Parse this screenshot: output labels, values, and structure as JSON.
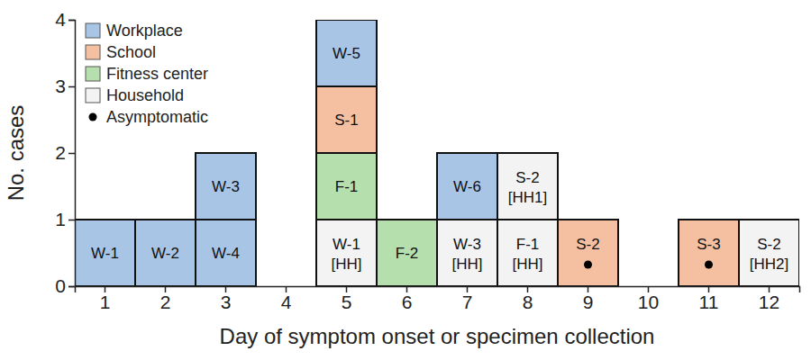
{
  "chart_data": {
    "type": "bar",
    "stacked": true,
    "x_label": "Day of symptom onset or specimen collection",
    "y_label": "No. cases",
    "categories": [
      1,
      2,
      3,
      4,
      5,
      6,
      7,
      8,
      9,
      10,
      11,
      12
    ],
    "ylim": [
      0,
      4
    ],
    "yticks": [
      0,
      1,
      2,
      3,
      4
    ],
    "grid": false,
    "legend": "upper left",
    "groups": [
      {
        "name": "Workplace",
        "color": "#a8c5e6"
      },
      {
        "name": "School",
        "color": "#f5c0a2"
      },
      {
        "name": "Fitness center",
        "color": "#b6dfae"
      },
      {
        "name": "Household",
        "color": "#f3f3f3"
      }
    ],
    "asymptomatic_marker": {
      "name": "Asymptomatic",
      "marker": "circle"
    },
    "cases": [
      {
        "day": 1,
        "label": "W-1",
        "setting": "Workplace",
        "asymptomatic": false,
        "value": 1
      },
      {
        "day": 2,
        "label": "W-2",
        "setting": "Workplace",
        "asymptomatic": false,
        "value": 1
      },
      {
        "day": 3,
        "label": "W-4",
        "setting": "Workplace",
        "asymptomatic": false,
        "value": 1
      },
      {
        "day": 3,
        "label": "W-3",
        "setting": "Workplace",
        "asymptomatic": false,
        "value": 1
      },
      {
        "day": 5,
        "label": "W-1 [HH]",
        "setting": "Household",
        "asymptomatic": false,
        "value": 1
      },
      {
        "day": 5,
        "label": "F-1",
        "setting": "Fitness center",
        "asymptomatic": false,
        "value": 1
      },
      {
        "day": 5,
        "label": "S-1",
        "setting": "School",
        "asymptomatic": false,
        "value": 1
      },
      {
        "day": 5,
        "label": "W-5",
        "setting": "Workplace",
        "asymptomatic": false,
        "value": 1
      },
      {
        "day": 6,
        "label": "F-2",
        "setting": "Fitness center",
        "asymptomatic": false,
        "value": 1
      },
      {
        "day": 7,
        "label": "W-3 [HH]",
        "setting": "Household",
        "asymptomatic": false,
        "value": 1
      },
      {
        "day": 7,
        "label": "W-6",
        "setting": "Workplace",
        "asymptomatic": false,
        "value": 1
      },
      {
        "day": 8,
        "label": "F-1 [HH]",
        "setting": "Household",
        "asymptomatic": false,
        "value": 1
      },
      {
        "day": 8,
        "label": "S-2 [HH1]",
        "setting": "Household",
        "asymptomatic": false,
        "value": 1
      },
      {
        "day": 9,
        "label": "S-2",
        "setting": "School",
        "asymptomatic": true,
        "value": 1
      },
      {
        "day": 11,
        "label": "S-3",
        "setting": "School",
        "asymptomatic": true,
        "value": 1
      },
      {
        "day": 12,
        "label": "S-2 [HH2]",
        "setting": "Household",
        "asymptomatic": false,
        "value": 1
      }
    ]
  }
}
